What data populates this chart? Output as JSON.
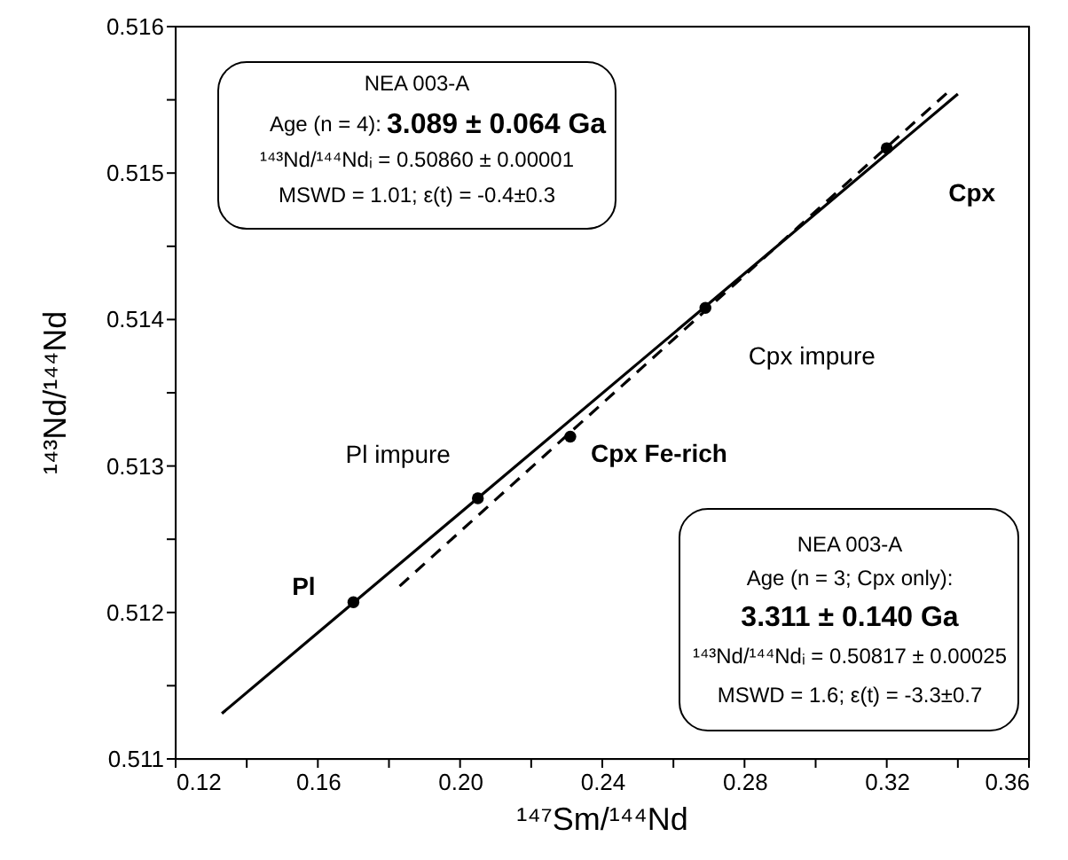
{
  "chart_data": {
    "type": "scatter",
    "xlabel": "¹⁴⁷Sm/¹⁴⁴Nd",
    "ylabel": "¹⁴³Nd/¹⁴⁴Nd",
    "xlim": [
      0.12,
      0.36
    ],
    "xticks": [
      0.12,
      {
        "value": 0.14,
        "label": null
      },
      0.16,
      {
        "value": 0.18,
        "label": null
      },
      {
        "value": 0.2,
        "label": "0.20"
      },
      {
        "value": 0.22,
        "label": null
      },
      0.24,
      {
        "value": 0.26,
        "label": null
      },
      0.28,
      {
        "value": 0.3,
        "label": null
      },
      0.32,
      {
        "value": 0.34,
        "label": null
      },
      0.36
    ],
    "ylim": [
      0.511,
      0.516
    ],
    "yticks": [
      0.511,
      {
        "value": 0.5115,
        "label": null
      },
      0.512,
      {
        "value": 0.5125,
        "label": null
      },
      0.513,
      {
        "value": 0.5135,
        "label": null
      },
      0.514,
      {
        "value": 0.5145,
        "label": null
      },
      0.515,
      {
        "value": 0.5155,
        "label": null
      },
      0.516
    ],
    "grid": false,
    "series": [
      {
        "type": "line",
        "color": "#000000",
        "line_style": "solid",
        "marker": "none",
        "x": [
          0.133,
          0.34
        ],
        "values": [
          0.51131,
          0.51554
        ]
      },
      {
        "type": "line",
        "color": "#000000",
        "line_style": "dashed",
        "marker": "none",
        "x": [
          0.183,
          0.338
        ],
        "values": [
          0.51218,
          0.51557
        ]
      },
      {
        "type": "scatter",
        "color": "#000000",
        "marker": "circle",
        "x": [
          0.17,
          0.205,
          0.231,
          0.269,
          0.32
        ],
        "values": [
          0.51207,
          0.51278,
          0.5132,
          0.51408,
          0.51517
        ]
      }
    ],
    "annotations": [
      "NEA 003-A",
      "Age (n = 4):",
      "3.089 ± 0.064 Ga",
      "¹⁴³Nd/¹⁴⁴Ndᵢ = 0.50860 ± 0.00001",
      "MSWD = 1.01;  ε(t) = -0.4±0.3",
      "NEA 003-A",
      "Age (n = 3; Cpx only):",
      "3.311 ± 0.140 Ga",
      "¹⁴³Nd/¹⁴⁴Ndᵢ = 0.50817 ± 0.00025",
      "MSWD = 1.6;  ε(t) = -3.3±0.7",
      {
        "text": "Pl",
        "x": 0.17,
        "y": 0.51207
      },
      {
        "text": "Pl impure",
        "x": 0.205,
        "y": 0.51278
      },
      {
        "text": "Cpx Fe-rich",
        "x": 0.231,
        "y": 0.5132
      },
      {
        "text": "Cpx impure",
        "x": 0.269,
        "y": 0.51408
      },
      {
        "text": "Cpx",
        "x": 0.32,
        "y": 0.51517
      }
    ]
  }
}
